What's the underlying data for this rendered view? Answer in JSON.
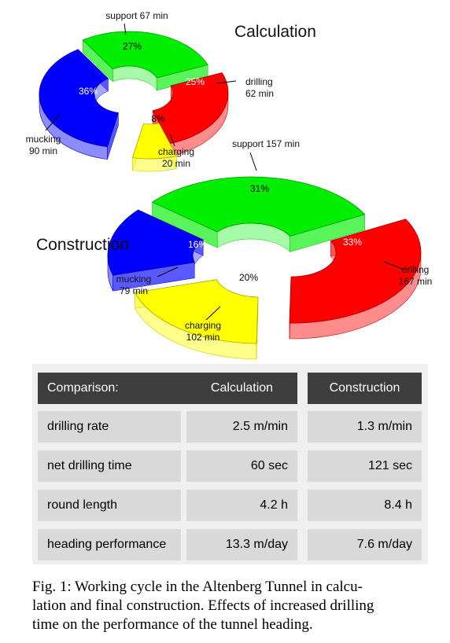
{
  "chart_data": [
    {
      "type": "pie",
      "title": "Calculation",
      "units": "min",
      "slices": [
        {
          "label": "drilling",
          "value": 62,
          "percent": "25%",
          "color": "#ff0000"
        },
        {
          "label": "charging",
          "value": 20,
          "percent": "8%",
          "color": "#ffff00"
        },
        {
          "label": "mucking",
          "value": 90,
          "percent": "36%",
          "color": "#0000ff"
        },
        {
          "label": "support",
          "value": 67,
          "percent": "27%",
          "color": "#00ee00"
        }
      ]
    },
    {
      "type": "pie",
      "title": "Construction",
      "units": "min",
      "slices": [
        {
          "label": "drilling",
          "value": 167,
          "percent": "33%",
          "color": "#ff0000"
        },
        {
          "label": "charging",
          "value": 102,
          "percent": "20%",
          "color": "#ffff00"
        },
        {
          "label": "mucking",
          "value": 79,
          "percent": "16%",
          "color": "#0000ff"
        },
        {
          "label": "support",
          "value": 157,
          "percent": "31%",
          "color": "#00ee00"
        }
      ]
    }
  ],
  "table": {
    "header": [
      "Comparison:",
      "Calculation",
      "Construction"
    ],
    "rows": [
      [
        "drilling rate",
        "2.5 m/min",
        "1.3 m/min"
      ],
      [
        "net drilling time",
        "60 sec",
        "121 sec"
      ],
      [
        "round length",
        "4.2 h",
        "8.4 h"
      ],
      [
        "heading performance",
        "13.3 m/day",
        "7.6 m/day"
      ]
    ]
  },
  "caption": "Fig. 1: Working cycle in the Altenberg Tunnel in calcu- lation and final construction. Effects of increased drilling time on the performance of the tunnel heading."
}
